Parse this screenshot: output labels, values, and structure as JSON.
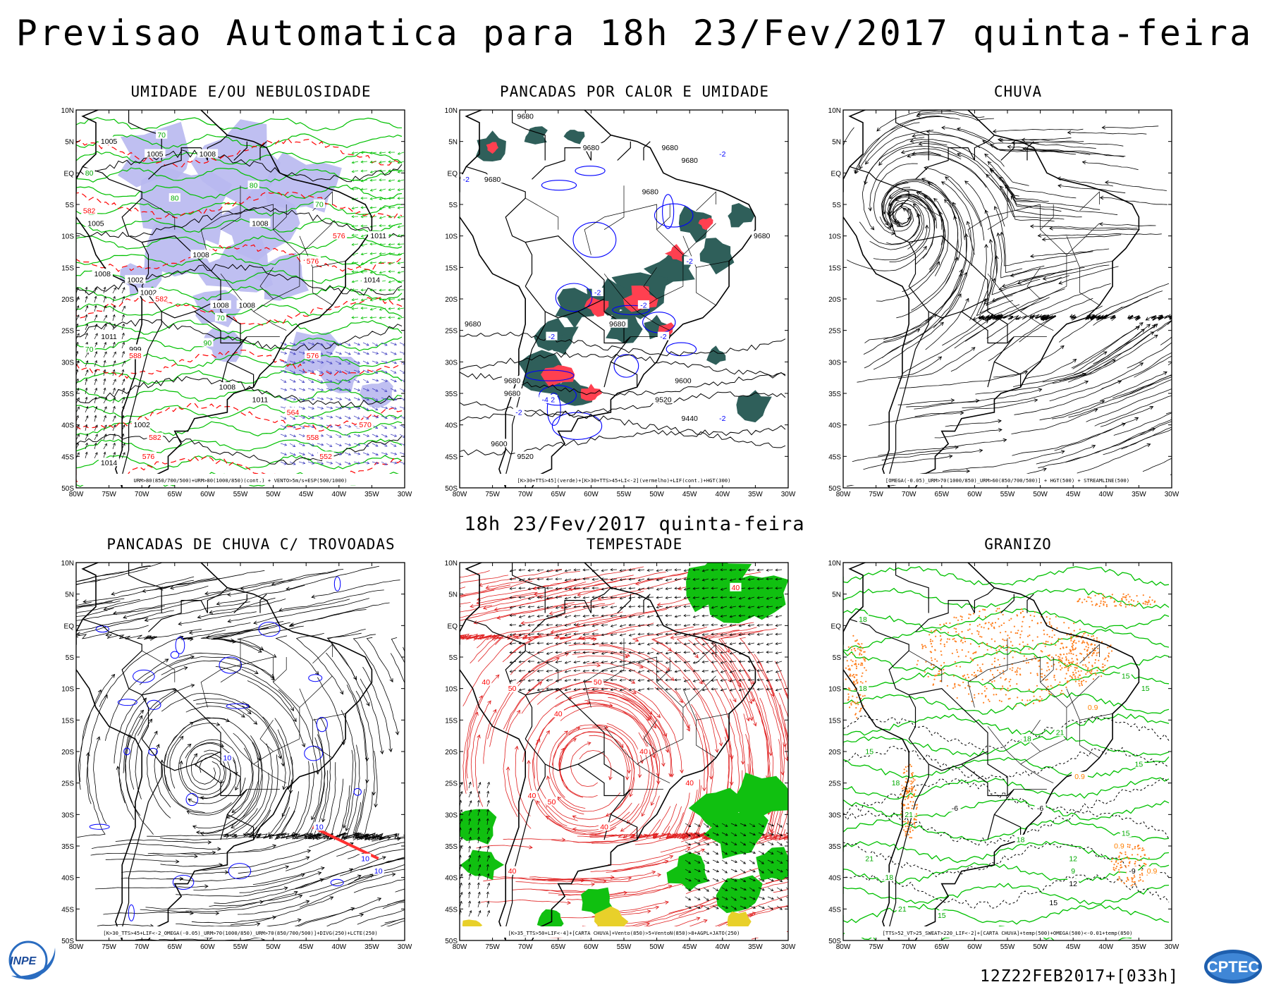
{
  "header": {
    "title": "Previsao Automatica  para 18h 23/Fev/2017 quinta-feira",
    "subtitle": "18h 23/Fev/2017 quinta-feira"
  },
  "axes": {
    "lat_labels": [
      "10N",
      "5N",
      "EQ",
      "5S",
      "10S",
      "15S",
      "20S",
      "25S",
      "30S",
      "35S",
      "40S",
      "45S",
      "50S"
    ],
    "lon_labels": [
      "80W",
      "75W",
      "70W",
      "65W",
      "60W",
      "55W",
      "50W",
      "45W",
      "40W",
      "35W",
      "30W"
    ]
  },
  "panels": [
    {
      "id": "umidade",
      "title": "UMIDADE E/OU NEBULOSIDADE",
      "legend": "URM>80(850/700/500)+URM>80(1000/850)(cont.) + VENTO>5m/s+ESP(500/1000)",
      "labels": [
        {
          "t": "1005",
          "lat": 5,
          "lon": -75,
          "c": "#000000"
        },
        {
          "t": "1005",
          "lat": 3,
          "lon": -68,
          "c": "#000000"
        },
        {
          "t": "1008",
          "lat": 3,
          "lon": -60,
          "c": "#000000"
        },
        {
          "t": "1005",
          "lat": -8,
          "lon": -77,
          "c": "#000000"
        },
        {
          "t": "1008",
          "lat": -8,
          "lon": -52,
          "c": "#000000"
        },
        {
          "t": "1008",
          "lat": -13,
          "lon": -61,
          "c": "#000000"
        },
        {
          "t": "1002",
          "lat": -17,
          "lon": -71,
          "c": "#000000"
        },
        {
          "t": "1008",
          "lat": -16,
          "lon": -76,
          "c": "#000000"
        },
        {
          "t": "1002",
          "lat": -19,
          "lon": -69,
          "c": "#000000"
        },
        {
          "t": "1008",
          "lat": -21,
          "lon": -58,
          "c": "#000000"
        },
        {
          "t": "1008",
          "lat": -21,
          "lon": -54,
          "c": "#000000"
        },
        {
          "t": "1011",
          "lat": -10,
          "lon": -34,
          "c": "#000000"
        },
        {
          "t": "1014",
          "lat": -17,
          "lon": -35,
          "c": "#000000"
        },
        {
          "t": "1011",
          "lat": -26,
          "lon": -75,
          "c": "#000000"
        },
        {
          "t": "999",
          "lat": -28,
          "lon": -71,
          "c": "#000000"
        },
        {
          "t": "1008",
          "lat": -34,
          "lon": -57,
          "c": "#000000"
        },
        {
          "t": "1011",
          "lat": -36,
          "lon": -52,
          "c": "#000000"
        },
        {
          "t": "1002",
          "lat": -40,
          "lon": -70,
          "c": "#000000"
        },
        {
          "t": "1014",
          "lat": -46,
          "lon": -75,
          "c": "#000000"
        },
        {
          "t": "582",
          "lat": -6,
          "lon": -78,
          "c": "#ff0000"
        },
        {
          "t": "582",
          "lat": -20,
          "lon": -67,
          "c": "#ff0000"
        },
        {
          "t": "588",
          "lat": -29,
          "lon": -71,
          "c": "#ff0000"
        },
        {
          "t": "576",
          "lat": -10,
          "lon": -40,
          "c": "#ff0000"
        },
        {
          "t": "576",
          "lat": -14,
          "lon": -44,
          "c": "#ff0000"
        },
        {
          "t": "576",
          "lat": -29,
          "lon": -44,
          "c": "#ff0000"
        },
        {
          "t": "564",
          "lat": -38,
          "lon": -47,
          "c": "#ff0000"
        },
        {
          "t": "570",
          "lat": -40,
          "lon": -36,
          "c": "#ff0000"
        },
        {
          "t": "558",
          "lat": -42,
          "lon": -44,
          "c": "#ff0000"
        },
        {
          "t": "552",
          "lat": -45,
          "lon": -42,
          "c": "#ff0000"
        },
        {
          "t": "582",
          "lat": -42,
          "lon": -68,
          "c": "#ff0000"
        },
        {
          "t": "576",
          "lat": -45,
          "lon": -69,
          "c": "#ff0000"
        },
        {
          "t": "80",
          "lat": 0,
          "lon": -78,
          "c": "#00aa00"
        },
        {
          "t": "80",
          "lat": -4,
          "lon": -65,
          "c": "#00aa00"
        },
        {
          "t": "80",
          "lat": -2,
          "lon": -53,
          "c": "#00aa00"
        },
        {
          "t": "70",
          "lat": 6,
          "lon": -67,
          "c": "#00aa00"
        },
        {
          "t": "70",
          "lat": -5,
          "lon": -43,
          "c": "#00aa00"
        },
        {
          "t": "70",
          "lat": -23,
          "lon": -58,
          "c": "#00aa00"
        },
        {
          "t": "70",
          "lat": -28,
          "lon": -78,
          "c": "#00aa00"
        },
        {
          "t": "90",
          "lat": -27,
          "lon": -60,
          "c": "#00aa00"
        }
      ]
    },
    {
      "id": "pancadas-calor",
      "title": "PANCADAS POR CALOR E UMIDADE",
      "legend": "[K>30+TTS>45](verde)+[K>30+TTS>45+LI<-2](vermelho)+LIF(cont.)+HGT(300)",
      "labels": [
        {
          "t": "9680",
          "lat": 9,
          "lon": -70,
          "c": "#000000"
        },
        {
          "t": "9680",
          "lat": 4,
          "lon": -60,
          "c": "#000000"
        },
        {
          "t": "9680",
          "lat": 4,
          "lon": -48,
          "c": "#000000"
        },
        {
          "t": "9680",
          "lat": 2,
          "lon": -45,
          "c": "#000000"
        },
        {
          "t": "9680",
          "lat": -1,
          "lon": -75,
          "c": "#000000"
        },
        {
          "t": "9680",
          "lat": -3,
          "lon": -51,
          "c": "#000000"
        },
        {
          "t": "9680",
          "lat": -10,
          "lon": -34,
          "c": "#000000"
        },
        {
          "t": "9680",
          "lat": -24,
          "lon": -78,
          "c": "#000000"
        },
        {
          "t": "9680",
          "lat": -24,
          "lon": -56,
          "c": "#000000"
        },
        {
          "t": "9680",
          "lat": -33,
          "lon": -72,
          "c": "#000000"
        },
        {
          "t": "9680",
          "lat": -35,
          "lon": -72,
          "c": "#000000"
        },
        {
          "t": "9600",
          "lat": -33,
          "lon": -46,
          "c": "#000000"
        },
        {
          "t": "9520",
          "lat": -36,
          "lon": -49,
          "c": "#000000"
        },
        {
          "t": "9440",
          "lat": -39,
          "lon": -45,
          "c": "#000000"
        },
        {
          "t": "9600",
          "lat": -43,
          "lon": -74,
          "c": "#000000"
        },
        {
          "t": "9520",
          "lat": -45,
          "lon": -70,
          "c": "#000000"
        },
        {
          "t": "-2",
          "lat": -1,
          "lon": -79,
          "c": "#0000ff"
        },
        {
          "t": "-2",
          "lat": 3,
          "lon": -40,
          "c": "#0000ff"
        },
        {
          "t": "-2",
          "lat": -14,
          "lon": -45,
          "c": "#0000ff"
        },
        {
          "t": "-2",
          "lat": -19,
          "lon": -59,
          "c": "#0000ff"
        },
        {
          "t": "-2",
          "lat": -21,
          "lon": -52,
          "c": "#0000ff"
        },
        {
          "t": "-2",
          "lat": -26,
          "lon": -49,
          "c": "#0000ff"
        },
        {
          "t": "-2",
          "lat": -36,
          "lon": -66,
          "c": "#0000ff"
        },
        {
          "t": "-2",
          "lat": -38,
          "lon": -71,
          "c": "#0000ff"
        },
        {
          "t": "-4",
          "lat": -36,
          "lon": -67,
          "c": "#0000ff"
        },
        {
          "t": "-2",
          "lat": -39,
          "lon": -40,
          "c": "#0000ff"
        },
        {
          "t": "-2",
          "lat": -26,
          "lon": -66,
          "c": "#0000ff"
        }
      ]
    },
    {
      "id": "chuva",
      "title": "CHUVA",
      "legend": "[OMEGA(-0.05)_URM>70(1000/850)_URM>60(850/700/500)] + HGT(500) + STREAMLINE(500)",
      "labels": []
    },
    {
      "id": "pancadas-trovoadas",
      "title": "PANCADAS DE CHUVA C/ TROVOADAS",
      "legend": "[K>30_TTS>45+LIF<-2_OMEGA(-0.05)_URM>70(1000/850)_URM>70(850/700/500)]+DIVG(250)+LCTE(250)",
      "labels": [
        {
          "t": "10",
          "lat": -21,
          "lon": -57,
          "c": "#0000ff"
        },
        {
          "t": "10",
          "lat": -32,
          "lon": -43,
          "c": "#0000ff"
        },
        {
          "t": "10",
          "lat": -37,
          "lon": -36,
          "c": "#0000ff"
        },
        {
          "t": "10",
          "lat": -39,
          "lon": -34,
          "c": "#0000ff"
        }
      ]
    },
    {
      "id": "tempestade",
      "title": "TEMPESTADE",
      "legend": "[K>35_TTS>50+LIF<-4]+[CARTA CHUVA]+Vento(850)>5+VentoN(850)>8+AGPL+JATO(250)",
      "labels": [
        {
          "t": "40",
          "lat": -9,
          "lon": -76,
          "c": "#ff0000"
        },
        {
          "t": "50",
          "lat": -10,
          "lon": -72,
          "c": "#ff0000"
        },
        {
          "t": "40",
          "lat": -14,
          "lon": -65,
          "c": "#ff0000"
        },
        {
          "t": "50",
          "lat": -9,
          "lon": -59,
          "c": "#ff0000"
        },
        {
          "t": "40",
          "lat": -20,
          "lon": -52,
          "c": "#ff0000"
        },
        {
          "t": "40",
          "lat": -27,
          "lon": -69,
          "c": "#ff0000"
        },
        {
          "t": "50",
          "lat": -28,
          "lon": -66,
          "c": "#ff0000"
        },
        {
          "t": "40",
          "lat": -32,
          "lon": -58,
          "c": "#ff0000"
        },
        {
          "t": "40",
          "lat": -39,
          "lon": -72,
          "c": "#ff0000"
        },
        {
          "t": "40",
          "lat": -25,
          "lon": -45,
          "c": "#ff0000"
        },
        {
          "t": "40",
          "lat": 6,
          "lon": -38,
          "c": "#ff0000"
        }
      ]
    },
    {
      "id": "granizo",
      "title": "GRANIZO",
      "legend": "[TTS>52_VT>25_SWEAT>220_LIF<-2]+[CARTA CHUVA]+temp(500)+OMEGA(500)<-0.01+temp(850)",
      "labels": [
        {
          "t": "18",
          "lat": 1,
          "lon": -77,
          "c": "#00aa00"
        },
        {
          "t": "18",
          "lat": -10,
          "lon": -77,
          "c": "#00aa00"
        },
        {
          "t": "15",
          "lat": -20,
          "lon": -76,
          "c": "#00aa00"
        },
        {
          "t": "18",
          "lat": -25,
          "lon": -72,
          "c": "#00aa00"
        },
        {
          "t": "21",
          "lat": -30,
          "lon": -70,
          "c": "#00aa00"
        },
        {
          "t": "21",
          "lat": -37,
          "lon": -76,
          "c": "#00aa00"
        },
        {
          "t": "18",
          "lat": -40,
          "lon": -73,
          "c": "#00aa00"
        },
        {
          "t": "21",
          "lat": -45,
          "lon": -71,
          "c": "#00aa00"
        },
        {
          "t": "15",
          "lat": -46,
          "lon": -65,
          "c": "#00aa00"
        },
        {
          "t": "18",
          "lat": -18,
          "lon": -52,
          "c": "#00aa00"
        },
        {
          "t": "21",
          "lat": -17,
          "lon": -47,
          "c": "#00aa00"
        },
        {
          "t": "18",
          "lat": -34,
          "lon": -53,
          "c": "#00aa00"
        },
        {
          "t": "12",
          "lat": -37,
          "lon": -45,
          "c": "#00aa00"
        },
        {
          "t": "9",
          "lat": -39,
          "lon": -45,
          "c": "#00aa00"
        },
        {
          "t": "15",
          "lat": -33,
          "lon": -37,
          "c": "#00aa00"
        },
        {
          "t": "15",
          "lat": -22,
          "lon": -35,
          "c": "#00aa00"
        },
        {
          "t": "15",
          "lat": -8,
          "lon": -37,
          "c": "#00aa00"
        },
        {
          "t": "15",
          "lat": -10,
          "lon": -34,
          "c": "#00aa00"
        },
        {
          "t": "-6",
          "lat": -29,
          "lon": -63,
          "c": "#000000"
        },
        {
          "t": "-6",
          "lat": -29,
          "lon": -50,
          "c": "#000000"
        },
        {
          "t": "12",
          "lat": -41,
          "lon": -45,
          "c": "#000000"
        },
        {
          "t": "15",
          "lat": -44,
          "lon": -48,
          "c": "#000000"
        },
        {
          "t": "-9",
          "lat": -39,
          "lon": -36,
          "c": "#000000"
        },
        {
          "t": "0.9",
          "lat": -35,
          "lon": -38,
          "c": "#ff8000"
        },
        {
          "t": "0.9",
          "lat": -39,
          "lon": -33,
          "c": "#ff8000"
        },
        {
          "t": "0.9",
          "lat": -24,
          "lon": -44,
          "c": "#ff8000"
        },
        {
          "t": "0.9",
          "lat": -13,
          "lon": -42,
          "c": "#ff8000"
        }
      ]
    }
  ],
  "footer": {
    "run": "12Z22FEB2017+[033h]",
    "logo_left": "INPE",
    "logo_right": "CPTEC"
  },
  "colors": {
    "contour_black": "#000000",
    "contour_green": "#00c000",
    "contour_red": "#ff0000",
    "contour_blue": "#0000ff",
    "fill_lavender": "#b8b8f0",
    "fill_darkteal": "#2f5f5a",
    "fill_red": "#ff4050",
    "fill_green": "#10c010",
    "fill_yellow": "#e8d02a",
    "dots_orange": "#ff8020"
  }
}
